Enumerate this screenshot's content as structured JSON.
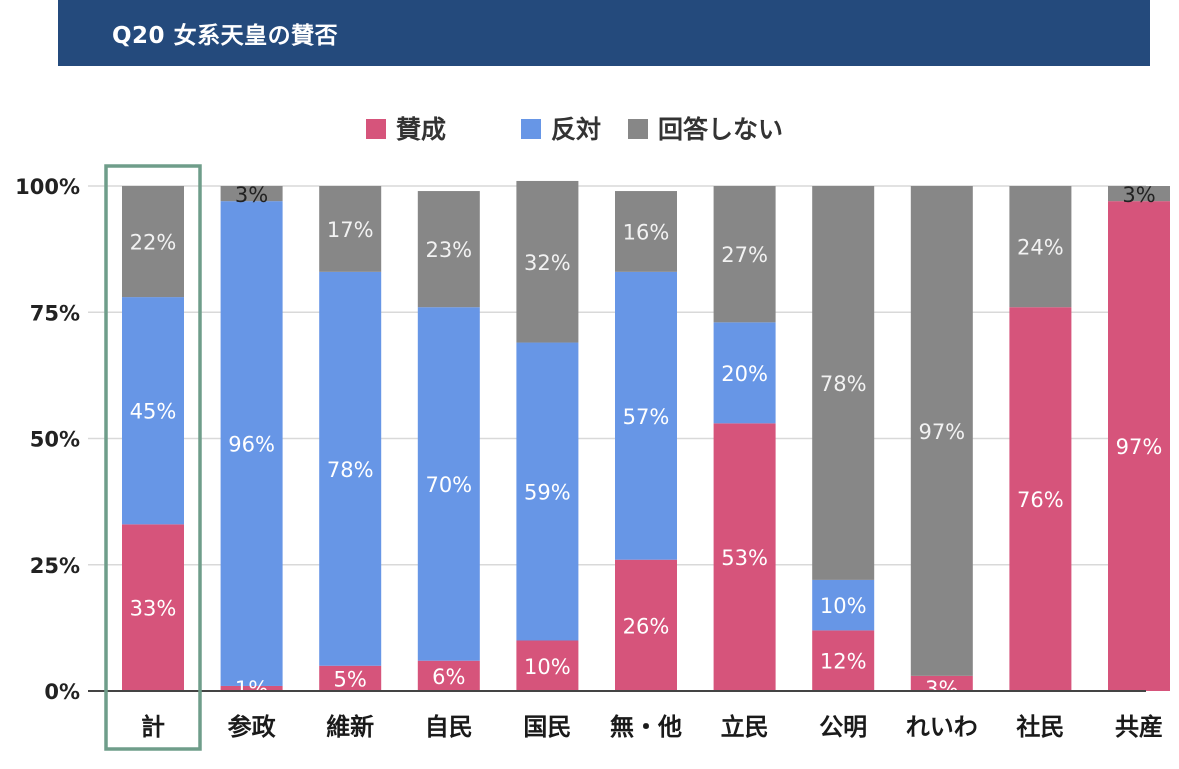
{
  "header": {
    "title": "Q20 女系天皇の賛否"
  },
  "colors": {
    "header_bg": "#244a7c",
    "yes": "#d6547b",
    "no": "#6796e6",
    "none": "#878787",
    "highlight_box": "#6f9d8a",
    "grid": "#d9d9d9",
    "axis": "#444444"
  },
  "chart_data": {
    "type": "bar",
    "stacked": true,
    "categories": [
      "計",
      "参政",
      "維新",
      "自民",
      "国民",
      "無・他",
      "立民",
      "公明",
      "れいわ",
      "社民",
      "共産"
    ],
    "series": [
      {
        "name": "賛成",
        "values": [
          33,
          1,
          5,
          6,
          10,
          26,
          53,
          12,
          3,
          76,
          97
        ]
      },
      {
        "name": "反対",
        "values": [
          45,
          96,
          78,
          70,
          59,
          57,
          20,
          10,
          0,
          0,
          0
        ]
      },
      {
        "name": "回答しない",
        "values": [
          22,
          3,
          17,
          23,
          32,
          16,
          27,
          78,
          97,
          24,
          3
        ]
      }
    ],
    "yticks": [
      "0%",
      "25%",
      "50%",
      "75%",
      "100%"
    ],
    "ylim": [
      0,
      100
    ],
    "legend": "top-center",
    "grid": true,
    "highlighted_category": "計"
  }
}
